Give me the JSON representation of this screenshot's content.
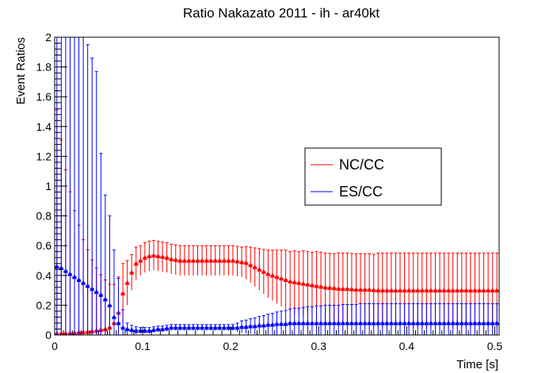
{
  "chart_data": {
    "type": "scatter",
    "title": "Ratio Nakazato 2011 - ih - ar40kt",
    "xlabel": "Time [s]",
    "ylabel": "Event Ratios",
    "xlim": [
      0,
      0.505
    ],
    "ylim": [
      0,
      2
    ],
    "x_ticks": [
      "0",
      "0.1",
      "0.2",
      "0.3",
      "0.4",
      "0.5"
    ],
    "y_ticks": [
      "0",
      "0.2",
      "0.4",
      "0.6",
      "0.8",
      "1",
      "1.2",
      "1.4",
      "1.6",
      "1.8",
      "2"
    ],
    "grid": false,
    "legend_position": "right-center",
    "x": [
      0.0025,
      0.0075,
      0.0125,
      0.0175,
      0.0225,
      0.0275,
      0.0325,
      0.0375,
      0.0425,
      0.0475,
      0.0525,
      0.0575,
      0.0625,
      0.0675,
      0.0725,
      0.0775,
      0.0825,
      0.0875,
      0.0925,
      0.0975,
      0.1025,
      0.1075,
      0.1125,
      0.1175,
      0.1225,
      0.1275,
      0.1325,
      0.1375,
      0.1425,
      0.1475,
      0.1525,
      0.1575,
      0.1625,
      0.1675,
      0.1725,
      0.1775,
      0.1825,
      0.1875,
      0.1925,
      0.1975,
      0.2025,
      0.2075,
      0.2125,
      0.2175,
      0.2225,
      0.2275,
      0.2325,
      0.2375,
      0.2425,
      0.2475,
      0.2525,
      0.2575,
      0.2625,
      0.2675,
      0.2725,
      0.2775,
      0.2825,
      0.2875,
      0.2925,
      0.2975,
      0.3025,
      0.3075,
      0.3125,
      0.3175,
      0.3225,
      0.3275,
      0.3325,
      0.3375,
      0.3425,
      0.3475,
      0.3525,
      0.3575,
      0.3625,
      0.3675,
      0.3725,
      0.3775,
      0.3825,
      0.3875,
      0.3925,
      0.3975,
      0.4025,
      0.4075,
      0.4125,
      0.4175,
      0.4225,
      0.4275,
      0.4325,
      0.4375,
      0.4425,
      0.4475,
      0.4525,
      0.4575,
      0.4625,
      0.4675,
      0.4725,
      0.4775,
      0.4825,
      0.4875,
      0.4925,
      0.4975,
      0.5025
    ],
    "series": [
      {
        "name": "NC/CC",
        "color": "#ff0000",
        "marker": "triangle-up",
        "y": [
          0.01,
          0.01,
          0.01,
          0.012,
          0.015,
          0.018,
          0.02,
          0.022,
          0.025,
          0.03,
          0.035,
          0.04,
          0.05,
          0.08,
          0.15,
          0.28,
          0.35,
          0.42,
          0.48,
          0.5,
          0.52,
          0.53,
          0.535,
          0.53,
          0.525,
          0.52,
          0.51,
          0.505,
          0.5,
          0.5,
          0.5,
          0.5,
          0.5,
          0.5,
          0.5,
          0.5,
          0.5,
          0.5,
          0.5,
          0.5,
          0.5,
          0.495,
          0.49,
          0.485,
          0.47,
          0.455,
          0.44,
          0.425,
          0.41,
          0.4,
          0.39,
          0.38,
          0.37,
          0.36,
          0.355,
          0.35,
          0.345,
          0.34,
          0.335,
          0.33,
          0.325,
          0.32,
          0.318,
          0.315,
          0.312,
          0.31,
          0.31,
          0.308,
          0.305,
          0.305,
          0.305,
          0.305,
          0.302,
          0.3,
          0.3,
          0.3,
          0.3,
          0.3,
          0.3,
          0.3,
          0.3,
          0.3,
          0.3,
          0.3,
          0.3,
          0.3,
          0.3,
          0.3,
          0.3,
          0.3,
          0.3,
          0.3,
          0.3,
          0.3,
          0.3,
          0.3,
          0.3,
          0.3,
          0.3,
          0.3,
          0.3
        ],
        "err": [
          1.5,
          1.3,
          1.1,
          0.95,
          0.82,
          0.72,
          0.62,
          0.55,
          0.48,
          0.42,
          0.37,
          0.33,
          0.29,
          0.26,
          0.24,
          0.2,
          0.15,
          0.12,
          0.11,
          0.1,
          0.1,
          0.1,
          0.1,
          0.1,
          0.1,
          0.1,
          0.1,
          0.1,
          0.1,
          0.1,
          0.1,
          0.1,
          0.1,
          0.1,
          0.1,
          0.1,
          0.1,
          0.1,
          0.1,
          0.1,
          0.1,
          0.1,
          0.1,
          0.11,
          0.12,
          0.13,
          0.14,
          0.15,
          0.16,
          0.17,
          0.18,
          0.19,
          0.2,
          0.2,
          0.21,
          0.21,
          0.22,
          0.22,
          0.22,
          0.23,
          0.23,
          0.23,
          0.23,
          0.23,
          0.24,
          0.24,
          0.24,
          0.24,
          0.24,
          0.24,
          0.24,
          0.24,
          0.24,
          0.25,
          0.25,
          0.25,
          0.25,
          0.25,
          0.25,
          0.25,
          0.25,
          0.25,
          0.25,
          0.25,
          0.25,
          0.25,
          0.25,
          0.25,
          0.25,
          0.25,
          0.25,
          0.25,
          0.25,
          0.25,
          0.25,
          0.25,
          0.25,
          0.25,
          0.25,
          0.25,
          0.25
        ]
      },
      {
        "name": "ES/CC",
        "color": "#0000ff",
        "marker": "triangle-up",
        "y": [
          0.46,
          0.45,
          0.43,
          0.41,
          0.39,
          0.37,
          0.35,
          0.33,
          0.31,
          0.29,
          0.27,
          0.24,
          0.2,
          0.12,
          0.08,
          0.05,
          0.04,
          0.035,
          0.03,
          0.03,
          0.03,
          0.03,
          0.035,
          0.04,
          0.04,
          0.045,
          0.05,
          0.05,
          0.05,
          0.05,
          0.05,
          0.05,
          0.05,
          0.05,
          0.05,
          0.05,
          0.05,
          0.05,
          0.05,
          0.05,
          0.05,
          0.05,
          0.055,
          0.055,
          0.06,
          0.06,
          0.065,
          0.065,
          0.07,
          0.07,
          0.075,
          0.075,
          0.075,
          0.08,
          0.08,
          0.08,
          0.08,
          0.08,
          0.08,
          0.08,
          0.08,
          0.08,
          0.08,
          0.08,
          0.08,
          0.08,
          0.08,
          0.08,
          0.08,
          0.08,
          0.08,
          0.08,
          0.08,
          0.08,
          0.08,
          0.08,
          0.08,
          0.08,
          0.08,
          0.08,
          0.08,
          0.08,
          0.08,
          0.08,
          0.08,
          0.08,
          0.08,
          0.08,
          0.08,
          0.08,
          0.08,
          0.08,
          0.08,
          0.08,
          0.08,
          0.08,
          0.08,
          0.08,
          0.08,
          0.08,
          0.08
        ],
        "err": [
          1.95,
          1.9,
          1.85,
          1.8,
          1.75,
          1.7,
          1.65,
          1.62,
          1.55,
          1.48,
          0.95,
          0.7,
          0.6,
          0.45,
          0.3,
          0.12,
          0.04,
          0.03,
          0.025,
          0.02,
          0.02,
          0.02,
          0.02,
          0.02,
          0.02,
          0.02,
          0.02,
          0.02,
          0.02,
          0.02,
          0.02,
          0.02,
          0.02,
          0.02,
          0.02,
          0.02,
          0.02,
          0.02,
          0.02,
          0.02,
          0.02,
          0.03,
          0.04,
          0.045,
          0.05,
          0.055,
          0.06,
          0.065,
          0.07,
          0.075,
          0.08,
          0.085,
          0.09,
          0.095,
          0.1,
          0.1,
          0.105,
          0.11,
          0.11,
          0.115,
          0.115,
          0.12,
          0.12,
          0.12,
          0.12,
          0.125,
          0.125,
          0.125,
          0.125,
          0.13,
          0.13,
          0.13,
          0.13,
          0.13,
          0.13,
          0.13,
          0.13,
          0.13,
          0.13,
          0.13,
          0.13,
          0.13,
          0.13,
          0.13,
          0.13,
          0.13,
          0.13,
          0.13,
          0.13,
          0.13,
          0.13,
          0.13,
          0.13,
          0.13,
          0.13,
          0.13,
          0.13,
          0.13,
          0.13,
          0.13,
          0.13
        ]
      }
    ]
  }
}
